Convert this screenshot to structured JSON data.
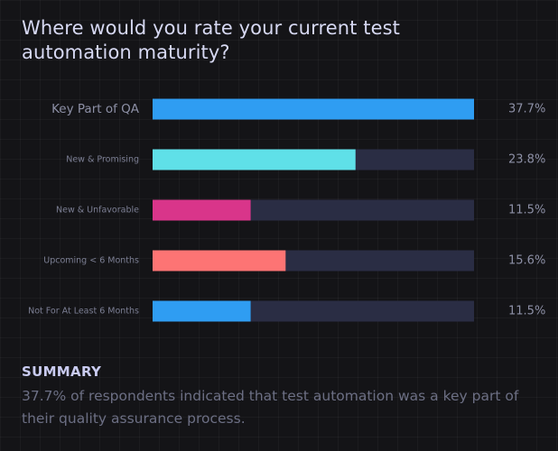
{
  "title": "Where would you rate your current test automation maturity?",
  "chart_data": {
    "type": "bar",
    "orientation": "horizontal",
    "categories": [
      "Key Part of QA",
      "New & Promising",
      "New & Unfavorable",
      "Upcoming < 6 Months",
      "Not For At Least 6 Months"
    ],
    "values": [
      37.7,
      23.8,
      11.5,
      15.6,
      11.5
    ],
    "value_labels": [
      "37.7%",
      "23.8%",
      "11.5%",
      "15.6%",
      "11.5%"
    ],
    "unit": "%",
    "xlim": [
      0,
      37.7
    ],
    "colors": [
      "#2f9df2",
      "#5fe0e8",
      "#d9358a",
      "#fd7474",
      "#2f9df2"
    ],
    "track_color": "#2a2d44",
    "grid": false,
    "legend": "none"
  },
  "summary": {
    "heading": "SUMMARY",
    "text": "37.7% of respondents indicated that test automation was a key part of their quality assurance process."
  }
}
